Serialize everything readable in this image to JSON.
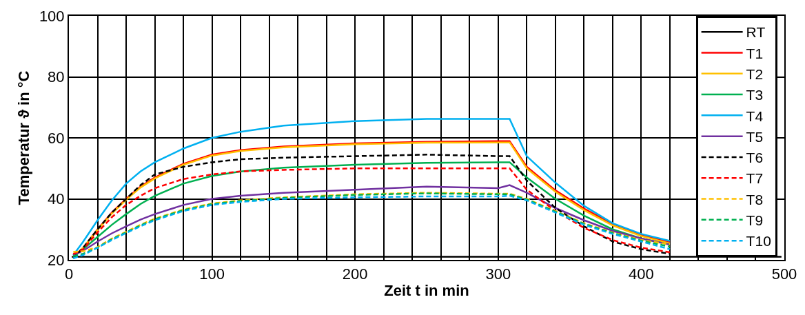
{
  "chart_data": {
    "type": "line",
    "xlabel": "Zeit t in min",
    "ylabel": "Temperatur ϑ in °C",
    "x": [
      3,
      10,
      20,
      30,
      40,
      50,
      60,
      80,
      100,
      120,
      150,
      200,
      250,
      300,
      308,
      320,
      340,
      360,
      380,
      400,
      420
    ],
    "xlim": [
      0,
      500
    ],
    "ylim": [
      20,
      100
    ],
    "xticks": [
      0,
      {
        "value": 20,
        "label": null
      },
      {
        "value": 40,
        "label": null
      },
      {
        "value": 60,
        "label": null
      },
      {
        "value": 80,
        "label": null
      },
      100,
      {
        "value": 120,
        "label": null
      },
      {
        "value": 140,
        "label": null
      },
      {
        "value": 160,
        "label": null
      },
      {
        "value": 180,
        "label": null
      },
      200,
      {
        "value": 220,
        "label": null
      },
      {
        "value": 240,
        "label": null
      },
      {
        "value": 260,
        "label": null
      },
      {
        "value": 280,
        "label": null
      },
      300,
      {
        "value": 320,
        "label": null
      },
      {
        "value": 340,
        "label": null
      },
      {
        "value": 360,
        "label": null
      },
      {
        "value": 380,
        "label": null
      },
      400,
      {
        "value": 420,
        "label": null
      },
      {
        "value": 440,
        "label": null
      },
      {
        "value": 460,
        "label": null
      },
      {
        "value": 480,
        "label": null
      },
      500
    ],
    "yticks": [
      20,
      40,
      60,
      80,
      100
    ],
    "grid": true,
    "legend": "top right",
    "marker": "none",
    "series": [
      {
        "name": "RT",
        "color": "#000000",
        "line_style": "solid",
        "x": [
          2,
          498
        ],
        "values": [
          21,
          21
        ]
      },
      {
        "name": "T1",
        "color": "#ff0000",
        "line_style": "solid",
        "values": [
          21,
          24,
          30,
          35.5,
          40,
          44,
          47,
          51.5,
          54.5,
          56,
          57.2,
          58.2,
          58.7,
          58.9,
          58.9,
          50.5,
          42.8,
          36.8,
          31.8,
          28.2,
          25.7
        ]
      },
      {
        "name": "T2",
        "color": "#ffc000",
        "line_style": "solid",
        "values": [
          21,
          24,
          29.8,
          35.2,
          39.7,
          43.7,
          46.7,
          51.2,
          54.2,
          55.7,
          56.9,
          57.9,
          58.4,
          58.5,
          58.5,
          50,
          42.3,
          36.3,
          31.3,
          27.8,
          25.4
        ]
      },
      {
        "name": "T3",
        "color": "#00b050",
        "line_style": "solid",
        "values": [
          21,
          23.5,
          27.5,
          31.5,
          35,
          38.3,
          41,
          45,
          47.5,
          49,
          50.2,
          51.2,
          51.8,
          52,
          52,
          47,
          40,
          34.5,
          30,
          27,
          25
        ]
      },
      {
        "name": "T4",
        "color": "#00b0f0",
        "line_style": "solid",
        "values": [
          21.5,
          26,
          33,
          39.5,
          45,
          49,
          52,
          56.5,
          60,
          62,
          64,
          65.5,
          66.2,
          66.2,
          66.2,
          54,
          45.3,
          37.7,
          32,
          28.5,
          26.2
        ]
      },
      {
        "name": "T5",
        "color": "#7030a0",
        "line_style": "solid",
        "values": [
          21.5,
          23,
          26,
          28.7,
          31,
          33.2,
          35,
          38,
          40,
          41,
          42,
          43,
          44,
          43.5,
          44.5,
          42,
          37,
          33,
          29.5,
          27,
          25
        ]
      },
      {
        "name": "T6",
        "color": "#000000",
        "line_style": "dashed",
        "values": [
          20.5,
          24,
          30,
          35.5,
          40,
          44.5,
          48,
          50.5,
          52,
          53,
          53.5,
          54,
          54.5,
          54,
          54,
          46,
          37,
          31,
          26,
          23.5,
          22
        ]
      },
      {
        "name": "T7",
        "color": "#ff0000",
        "line_style": "dashed",
        "values": [
          21.9,
          23.5,
          29,
          34,
          38,
          41,
          43.5,
          46.5,
          48,
          49,
          49.5,
          50,
          50,
          50,
          50,
          43,
          36,
          30.5,
          26.5,
          24,
          22.5
        ]
      },
      {
        "name": "T8",
        "color": "#ffc000",
        "line_style": "dashed",
        "values": [
          22.6,
          22.8,
          24.2,
          27,
          29.2,
          31.5,
          33.5,
          36.5,
          38.5,
          39.5,
          40.5,
          41.5,
          42,
          41.7,
          41.7,
          40,
          36,
          32,
          29,
          26.5,
          25.1
        ]
      },
      {
        "name": "T9",
        "color": "#00b050",
        "line_style": "dashed",
        "values": [
          21.2,
          22,
          24,
          26.8,
          29,
          31.3,
          33.3,
          36.3,
          38.3,
          39.3,
          40.3,
          41.3,
          41.8,
          41.5,
          41.5,
          39.8,
          35.8,
          31.8,
          28.8,
          26.3,
          24.3
        ]
      },
      {
        "name": "T10",
        "color": "#00b0f0",
        "line_style": "dashed",
        "values": [
          20.5,
          21.6,
          24,
          26.5,
          28.8,
          31,
          33,
          36,
          38,
          39,
          40,
          40.5,
          40.8,
          40.8,
          41,
          39.5,
          35.5,
          31.5,
          28.5,
          26,
          23.5
        ]
      }
    ]
  }
}
